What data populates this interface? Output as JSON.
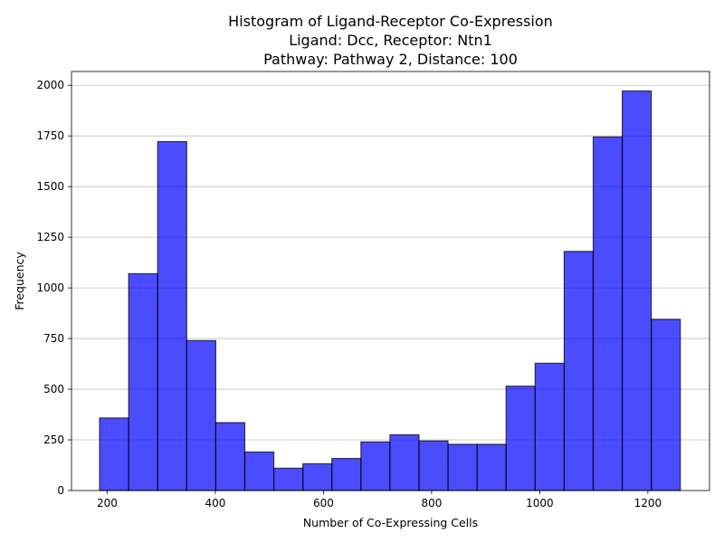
{
  "chart_data": {
    "type": "bar",
    "title_lines": [
      "Histogram of Ligand-Receptor Co-Expression",
      "Ligand: Dcc, Receptor: Ntn1",
      "Pathway: Pathway 2, Distance: 100"
    ],
    "xlabel": "Number of Co-Expressing Cells",
    "ylabel": "Frequency",
    "xlim": [
      134,
      1314
    ],
    "ylim": [
      0,
      2068
    ],
    "xticks": [
      200,
      400,
      600,
      800,
      1000,
      1200
    ],
    "yticks": [
      0,
      250,
      500,
      750,
      1000,
      1250,
      1500,
      1750,
      2000
    ],
    "grid": "y",
    "bin_start": 186,
    "bin_width": 53.7,
    "values": [
      358,
      1070,
      1722,
      740,
      335,
      190,
      110,
      132,
      158,
      240,
      275,
      245,
      228,
      228,
      515,
      628,
      1180,
      1745,
      1972,
      845
    ],
    "bar_color": "#0000ff",
    "bar_alpha": 0.7,
    "edge_color": "#000000"
  }
}
